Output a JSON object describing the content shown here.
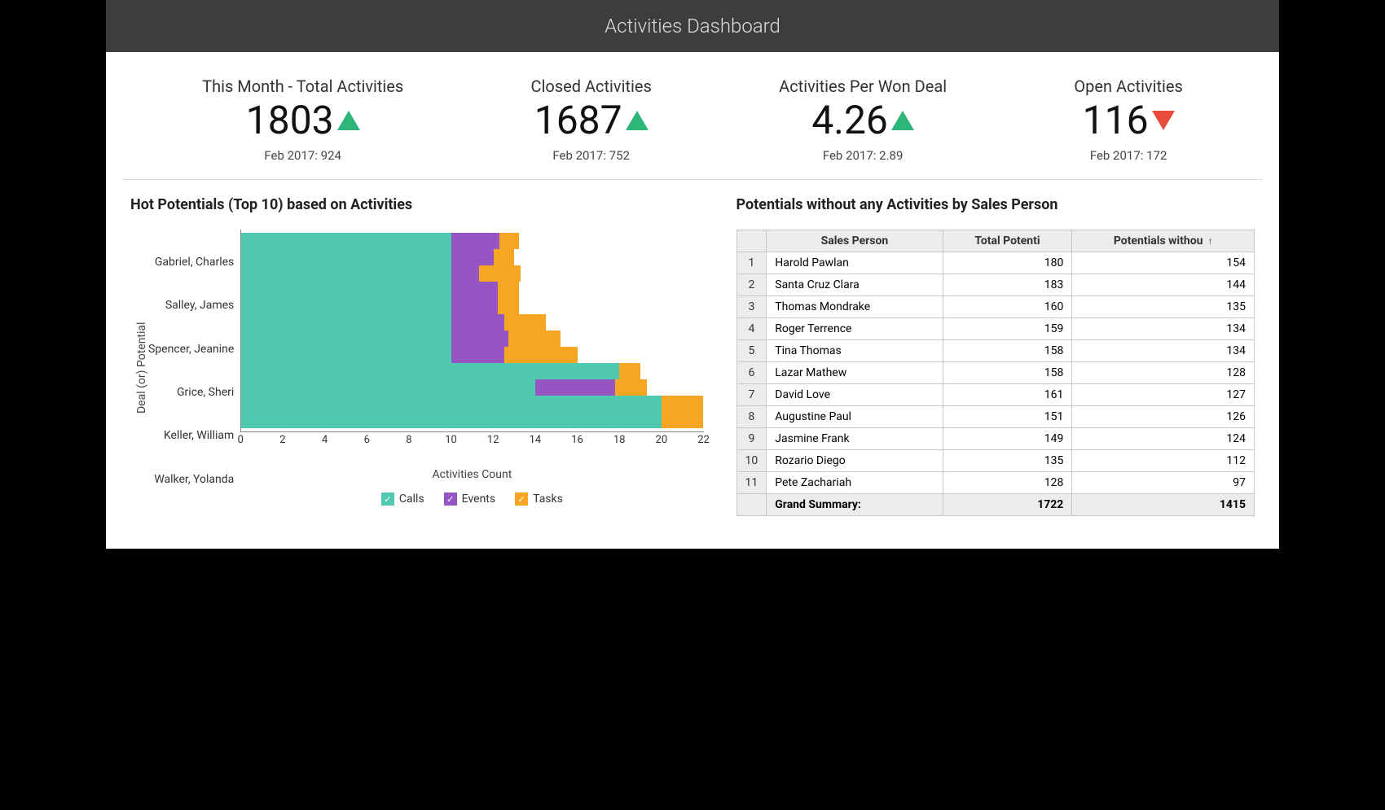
{
  "header": {
    "title": "Activities Dashboard"
  },
  "colors": {
    "calls": "#4fcab0",
    "events": "#9556c4",
    "tasks": "#f6a623",
    "up": "#2db57a",
    "down": "#e94b3c",
    "header_bg": "#3d3d3d",
    "border": "#c7c7c7"
  },
  "kpis": [
    {
      "title": "This Month - Total Activities",
      "value": "1803",
      "trend": "up",
      "sub": "Feb 2017: 924"
    },
    {
      "title": "Closed Activities",
      "value": "1687",
      "trend": "up",
      "sub": "Feb 2017: 752"
    },
    {
      "title": "Activities Per Won Deal",
      "value": "4.26",
      "trend": "up",
      "sub": "Feb 2017: 2.89"
    },
    {
      "title": "Open Activities",
      "value": "116",
      "trend": "down",
      "sub": "Feb 2017: 172"
    }
  ],
  "chart": {
    "title": "Hot Potentials (Top 10) based on Activities",
    "type": "stacked-horizontal-bar",
    "x_label": "Activities Count",
    "y_label": "Deal (or) Potential",
    "xlim": [
      0,
      22
    ],
    "xtick_step": 2,
    "legend": [
      {
        "label": "Calls",
        "color": "#4fcab0"
      },
      {
        "label": "Events",
        "color": "#9556c4"
      },
      {
        "label": "Tasks",
        "color": "#f6a623"
      }
    ],
    "y_tick_labels": [
      "",
      "Gabriel, Charles",
      "",
      "Salley, James",
      "",
      "Spencer, Jeanine",
      "",
      "Grice, Sheri",
      "",
      "Keller, William",
      "",
      "Walker, Yolanda"
    ],
    "bars": [
      {
        "calls": 10.0,
        "events": 2.3,
        "tasks": 0.9
      },
      {
        "calls": 10.0,
        "events": 2.0,
        "tasks": 1.0
      },
      {
        "calls": 10.0,
        "events": 1.3,
        "tasks": 2.0
      },
      {
        "calls": 10.0,
        "events": 2.2,
        "tasks": 1.0
      },
      {
        "calls": 10.0,
        "events": 2.2,
        "tasks": 1.0
      },
      {
        "calls": 10.0,
        "events": 2.5,
        "tasks": 2.0
      },
      {
        "calls": 10.0,
        "events": 2.7,
        "tasks": 2.5
      },
      {
        "calls": 10.0,
        "events": 2.5,
        "tasks": 3.5
      },
      {
        "calls": 18.0,
        "events": 0.0,
        "tasks": 1.0
      },
      {
        "calls": 14.0,
        "events": 3.8,
        "tasks": 1.5
      },
      {
        "calls": 20.0,
        "events": 0.0,
        "tasks": 2.0
      },
      {
        "calls": 20.0,
        "events": 0.0,
        "tasks": 2.0
      }
    ]
  },
  "table": {
    "title": "Potentials without any Activities by Sales Person",
    "columns": [
      "Sales Person",
      "Total Potenti",
      "Potentials withou"
    ],
    "sort_col": 2,
    "sort_dir": "asc",
    "rows": [
      [
        "Harold Pawlan",
        "180",
        "154"
      ],
      [
        "Santa Cruz Clara",
        "183",
        "144"
      ],
      [
        "Thomas Mondrake",
        "160",
        "135"
      ],
      [
        "Roger Terrence",
        "159",
        "134"
      ],
      [
        "Tina Thomas",
        "158",
        "134"
      ],
      [
        "Lazar Mathew",
        "158",
        "128"
      ],
      [
        "David Love",
        "161",
        "127"
      ],
      [
        "Augustine Paul",
        "151",
        "126"
      ],
      [
        "Jasmine Frank",
        "149",
        "124"
      ],
      [
        "Rozario Diego",
        "135",
        "112"
      ],
      [
        "Pete Zachariah",
        "128",
        "97"
      ]
    ],
    "summary": [
      "Grand Summary:",
      "1722",
      "1415"
    ]
  }
}
